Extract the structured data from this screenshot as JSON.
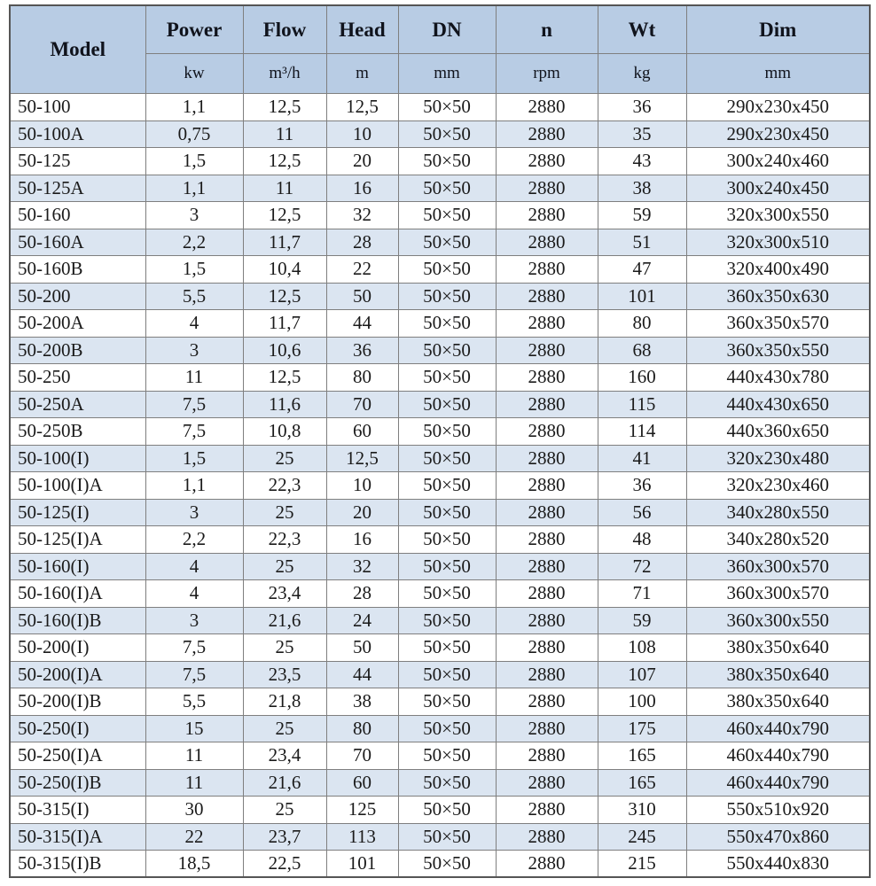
{
  "colors": {
    "header_bg": "#b8cce4",
    "stripe_bg": "#dbe5f1",
    "row_bg": "#ffffff",
    "border": "#7f7f7f",
    "text": "#1a1a1a"
  },
  "table": {
    "columns": [
      {
        "key": "model",
        "label": "Model",
        "unit": ""
      },
      {
        "key": "power",
        "label": "Power",
        "unit": "kw"
      },
      {
        "key": "flow",
        "label": "Flow",
        "unit": "m³/h"
      },
      {
        "key": "head",
        "label": "Head",
        "unit": "m"
      },
      {
        "key": "dn",
        "label": "DN",
        "unit": "mm"
      },
      {
        "key": "n",
        "label": "n",
        "unit": "rpm"
      },
      {
        "key": "wt",
        "label": "Wt",
        "unit": "kg"
      },
      {
        "key": "dim",
        "label": "Dim",
        "unit": "mm"
      }
    ],
    "rows": [
      [
        "50-100",
        "1,1",
        "12,5",
        "12,5",
        "50×50",
        "2880",
        "36",
        "290x230x450"
      ],
      [
        "50-100A",
        "0,75",
        "11",
        "10",
        "50×50",
        "2880",
        "35",
        "290x230x450"
      ],
      [
        "50-125",
        "1,5",
        "12,5",
        "20",
        "50×50",
        "2880",
        "43",
        "300x240x460"
      ],
      [
        "50-125A",
        "1,1",
        "11",
        "16",
        "50×50",
        "2880",
        "38",
        "300x240x450"
      ],
      [
        "50-160",
        "3",
        "12,5",
        "32",
        "50×50",
        "2880",
        "59",
        "320x300x550"
      ],
      [
        "50-160A",
        "2,2",
        "11,7",
        "28",
        "50×50",
        "2880",
        "51",
        "320x300x510"
      ],
      [
        "50-160B",
        "1,5",
        "10,4",
        "22",
        "50×50",
        "2880",
        "47",
        "320x400x490"
      ],
      [
        "50-200",
        "5,5",
        "12,5",
        "50",
        "50×50",
        "2880",
        "101",
        "360x350x630"
      ],
      [
        "50-200A",
        "4",
        "11,7",
        "44",
        "50×50",
        "2880",
        "80",
        "360x350x570"
      ],
      [
        "50-200B",
        "3",
        "10,6",
        "36",
        "50×50",
        "2880",
        "68",
        "360x350x550"
      ],
      [
        "50-250",
        "11",
        "12,5",
        "80",
        "50×50",
        "2880",
        "160",
        "440x430x780"
      ],
      [
        "50-250A",
        "7,5",
        "11,6",
        "70",
        "50×50",
        "2880",
        "115",
        "440x430x650"
      ],
      [
        "50-250B",
        "7,5",
        "10,8",
        "60",
        "50×50",
        "2880",
        "114",
        "440x360x650"
      ],
      [
        "50-100(I)",
        "1,5",
        "25",
        "12,5",
        "50×50",
        "2880",
        "41",
        "320x230x480"
      ],
      [
        "50-100(I)A",
        "1,1",
        "22,3",
        "10",
        "50×50",
        "2880",
        "36",
        "320x230x460"
      ],
      [
        "50-125(I)",
        "3",
        "25",
        "20",
        "50×50",
        "2880",
        "56",
        "340x280x550"
      ],
      [
        "50-125(I)A",
        "2,2",
        "22,3",
        "16",
        "50×50",
        "2880",
        "48",
        "340x280x520"
      ],
      [
        "50-160(I)",
        "4",
        "25",
        "32",
        "50×50",
        "2880",
        "72",
        "360x300x570"
      ],
      [
        "50-160(I)A",
        "4",
        "23,4",
        "28",
        "50×50",
        "2880",
        "71",
        "360x300x570"
      ],
      [
        "50-160(I)B",
        "3",
        "21,6",
        "24",
        "50×50",
        "2880",
        "59",
        "360x300x550"
      ],
      [
        "50-200(I)",
        "7,5",
        "25",
        "50",
        "50×50",
        "2880",
        "108",
        "380x350x640"
      ],
      [
        "50-200(I)A",
        "7,5",
        "23,5",
        "44",
        "50×50",
        "2880",
        "107",
        "380x350x640"
      ],
      [
        "50-200(I)B",
        "5,5",
        "21,8",
        "38",
        "50×50",
        "2880",
        "100",
        "380x350x640"
      ],
      [
        "50-250(I)",
        "15",
        "25",
        "80",
        "50×50",
        "2880",
        "175",
        "460x440x790"
      ],
      [
        "50-250(I)A",
        "11",
        "23,4",
        "70",
        "50×50",
        "2880",
        "165",
        "460x440x790"
      ],
      [
        "50-250(I)B",
        "11",
        "21,6",
        "60",
        "50×50",
        "2880",
        "165",
        "460x440x790"
      ],
      [
        "50-315(I)",
        "30",
        "25",
        "125",
        "50×50",
        "2880",
        "310",
        "550x510x920"
      ],
      [
        "50-315(I)A",
        "22",
        "23,7",
        "113",
        "50×50",
        "2880",
        "245",
        "550x470x860"
      ],
      [
        "50-315(I)B",
        "18,5",
        "22,5",
        "101",
        "50×50",
        "2880",
        "215",
        "550x440x830"
      ]
    ]
  }
}
